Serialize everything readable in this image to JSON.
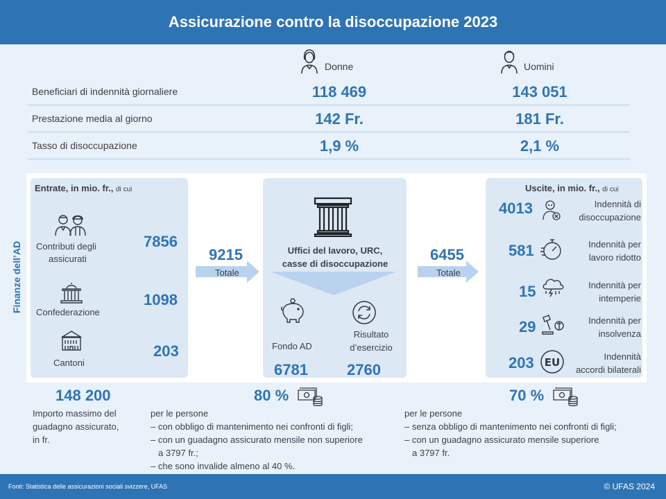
{
  "title": "Assicurazione contro la disoccupazione 2023",
  "columns": {
    "women": "Donne",
    "men": "Uomini"
  },
  "icons": {
    "women": "woman-icon",
    "men": "man-icon",
    "ufficio": "pillar-building-icon",
    "fondo": "piggy-bank-icon",
    "risultato": "cycle-icon",
    "money": "money-stack-icon"
  },
  "stats": [
    {
      "label": "Beneficiari di indennità giornaliere",
      "women": "118 469",
      "men": "143 051"
    },
    {
      "label": "Prestazione media al giorno",
      "women": "142 Fr.",
      "men": "181 Fr."
    },
    {
      "label": "Tasso di disoccupazione",
      "women": "1,9 %",
      "men": "2,1 %"
    }
  ],
  "side_label": "Finanze dell’AD",
  "income": {
    "title": "Entrate, in mio. fr.,",
    "title_suffix": "di cui",
    "items": [
      {
        "label_line1": "Contributi  degli",
        "label_line2": "assicurati",
        "value": "7856",
        "icon": "workers-icon"
      },
      {
        "label": "Confederazione",
        "value": "1098",
        "icon": "federal-building-icon"
      },
      {
        "label": "Cantoni",
        "value": "203",
        "icon": "cantonal-building-icon"
      }
    ],
    "total": "9215",
    "total_label": "Totale"
  },
  "center": {
    "title_line1": "Uffici del lavoro, URC,",
    "title_line2": "casse di disoccupazione",
    "fondo_label": "Fondo AD",
    "fondo_value": "6781",
    "risultato_line1": "Risultato",
    "risultato_line2": "d’esercizio",
    "risultato_value": "2760"
  },
  "expenses": {
    "title": "Uscite, in mio. fr.,",
    "title_suffix": "di cui",
    "total": "6455",
    "total_label": "Totale",
    "items": [
      {
        "value": "4013",
        "line1": "Indennità di",
        "line2": "disoccupazione",
        "icon": "unemployed-person-icon"
      },
      {
        "value": "581",
        "line1": "Indennità per",
        "line2": "lavoro ridotto",
        "icon": "stopwatch-icon"
      },
      {
        "value": "15",
        "line1": "Indennità per",
        "line2": "intemperie",
        "icon": "storm-cloud-icon"
      },
      {
        "value": "29",
        "line1": "Indennità per",
        "line2": "insolvenza",
        "icon": "gavel-icon"
      },
      {
        "value": "203",
        "line1": "Indennità",
        "line2": "accordi bilaterali",
        "icon": "eu-icon"
      }
    ]
  },
  "bottom": {
    "max_value": "148 200",
    "max_line1": "Importo  massimo del",
    "max_line2": "guadagno assicurato,",
    "max_line3": "in fr.",
    "pct80": "80 %",
    "notes80": [
      "per le persone",
      "– con obbligo di mantenimento  nei confronti di figli;",
      "– con un guadagno assicurato mensile non superiore",
      "a 3797 fr.;",
      "– che sono invalide almeno al 40 %."
    ],
    "pct70": "70 %",
    "notes70": [
      "per le persone",
      "– senza obbligo di mantenimento  nei confronti di figli;",
      "– con un guadagno assicurato mensile superiore",
      "a 3797 fr."
    ]
  },
  "footer": {
    "source": "Fonti: Statistica  delle  assicurazioni sociali svizzere,  UFAS",
    "copyright": "© UFAS 2024"
  },
  "colors": {
    "brand": "#2e74b5",
    "background": "#e9f1fa",
    "panel": "#dde8f5",
    "arrow": "#b9d3ee"
  }
}
